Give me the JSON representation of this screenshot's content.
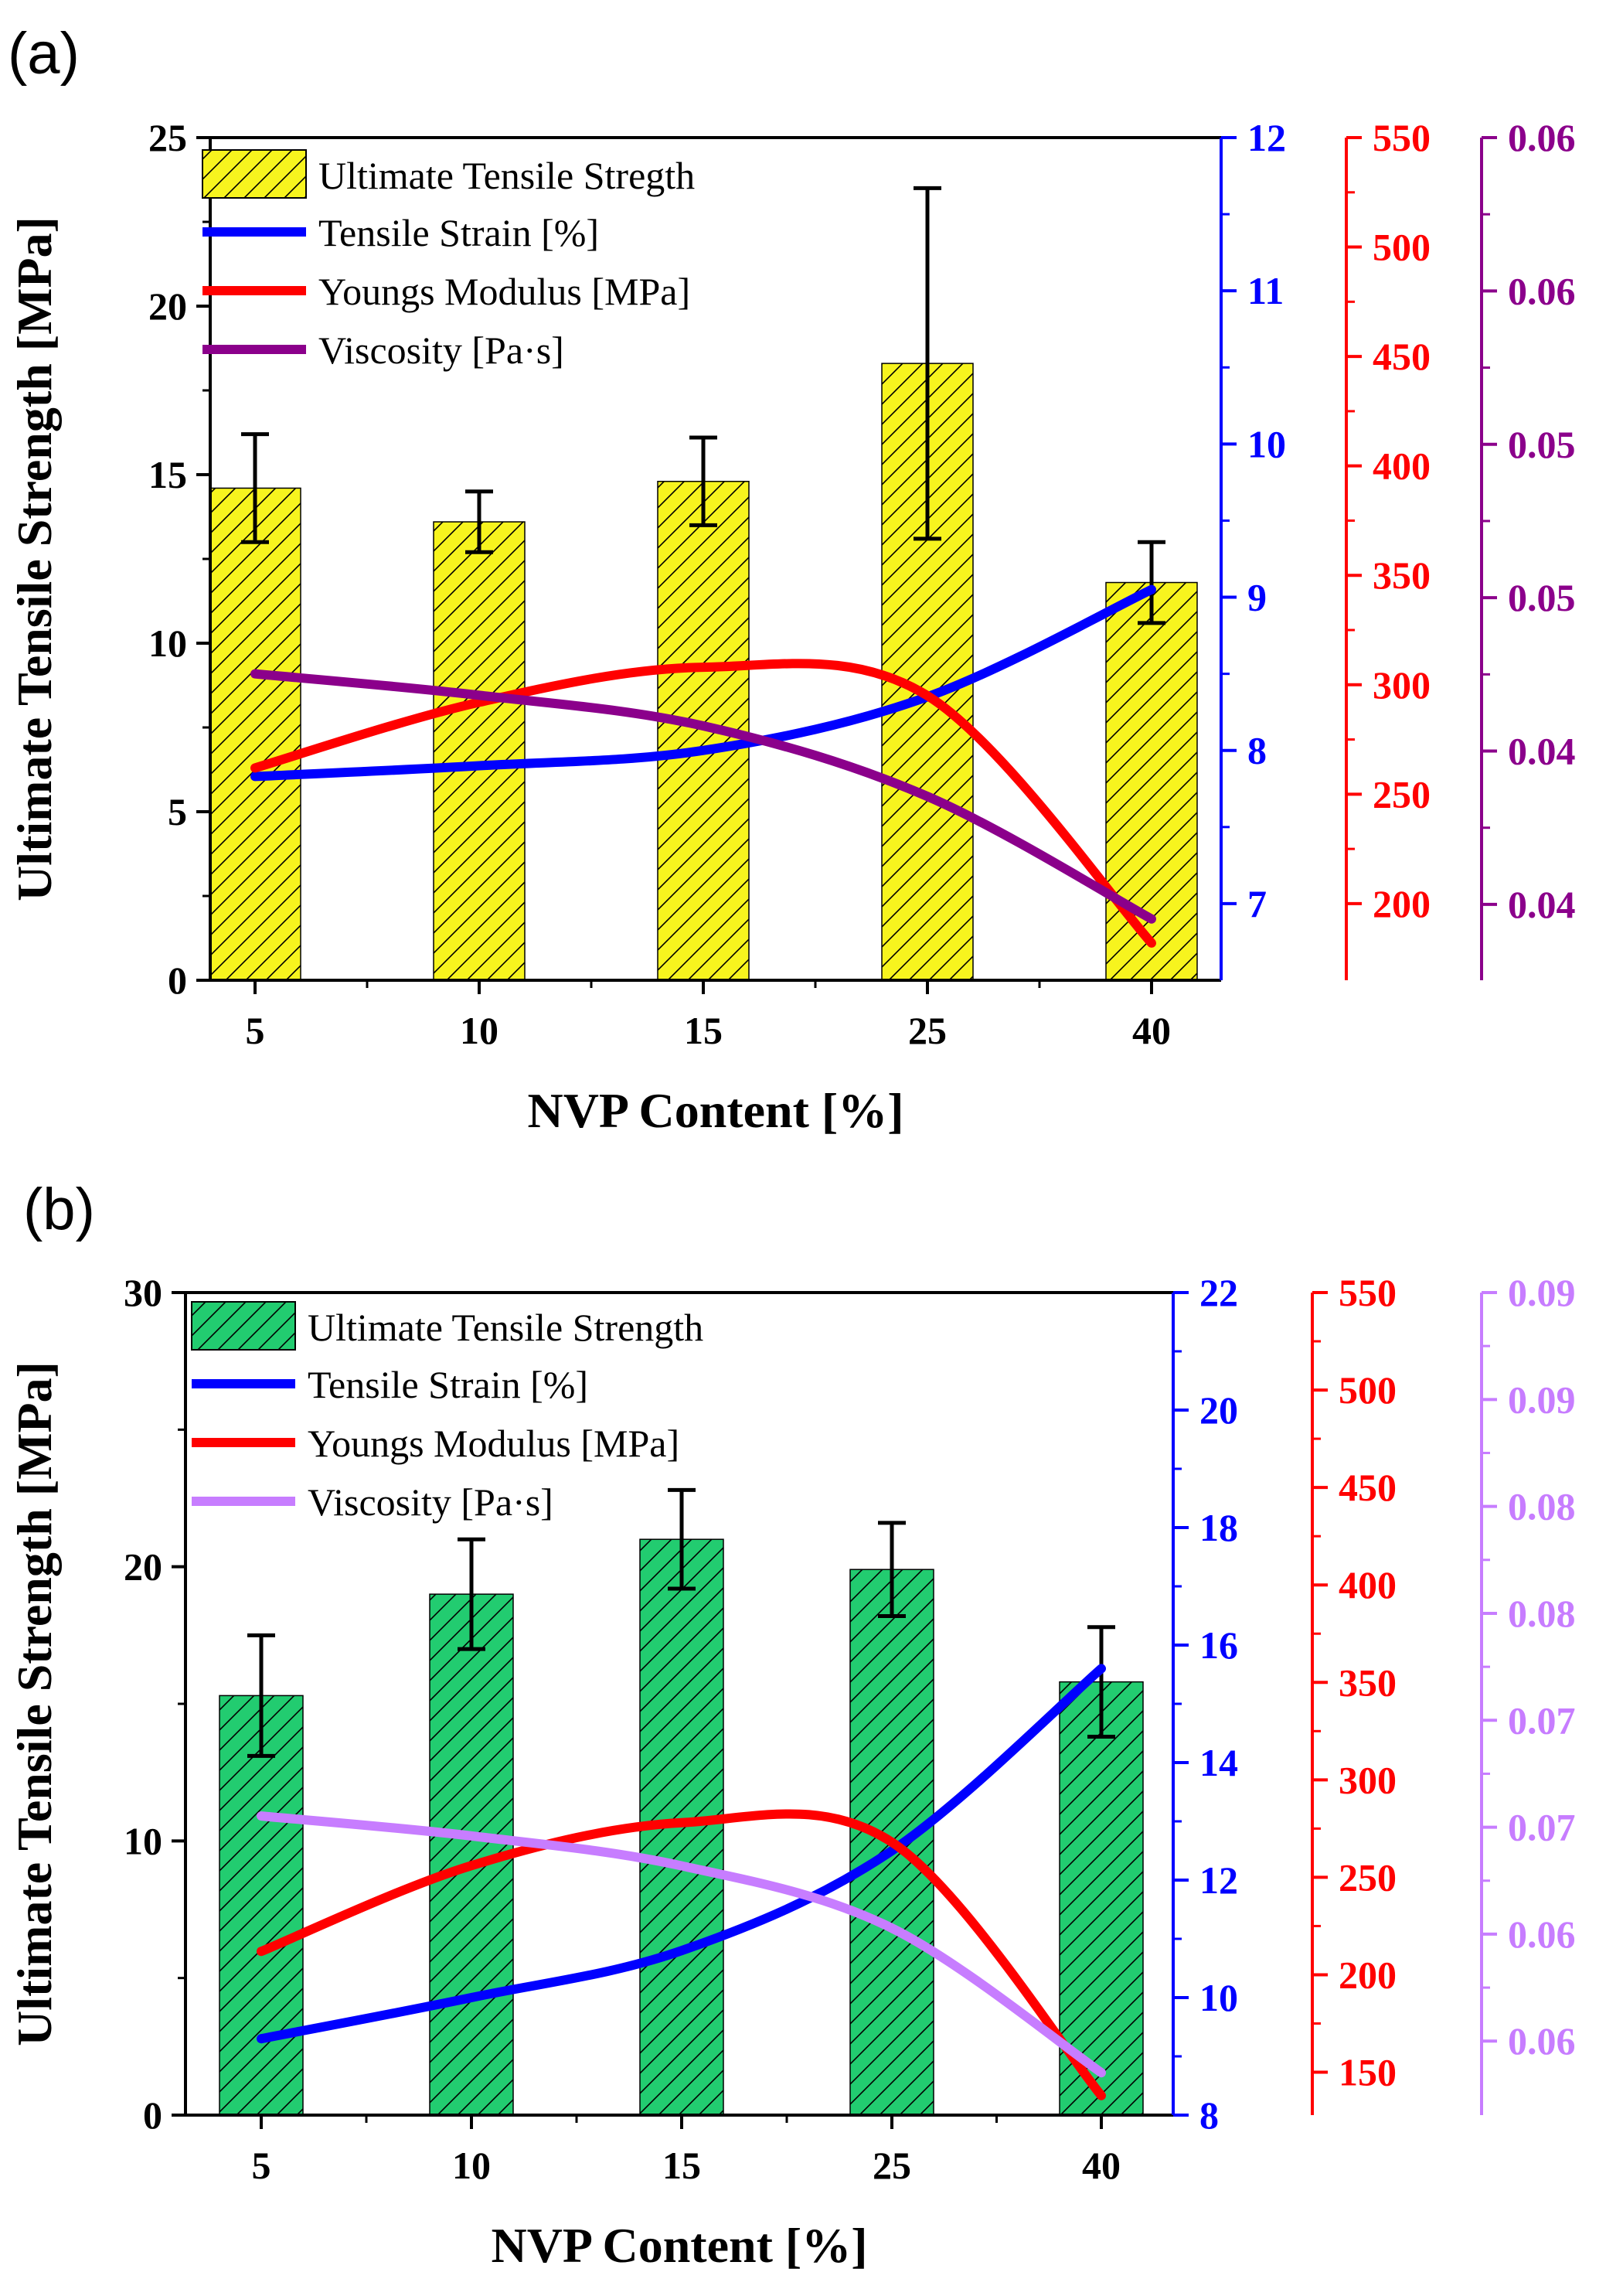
{
  "chart_data": [
    {
      "panel_label": "(a)",
      "type": "bar",
      "xlabel": "NVP Content [%]",
      "ylabel": "Ultimate Tensile Strength [MPa]",
      "categories": [
        "5",
        "10",
        "15",
        "25",
        "40"
      ],
      "bar_color": "#f7f41e",
      "ylim": [
        0,
        25
      ],
      "yticks": [
        "0",
        "5",
        "10",
        "15",
        "20",
        "25"
      ],
      "bars": {
        "name": "Ultimate Tensile Stregth",
        "values": [
          14.6,
          13.6,
          14.8,
          18.3,
          11.8
        ],
        "errors": [
          1.6,
          0.9,
          1.3,
          5.2,
          1.2
        ]
      },
      "lines": [
        {
          "name": "Tensile Strain [%]",
          "color": "#0000ff",
          "values": [
            7.83,
            7.9,
            8.0,
            8.35,
            9.05
          ],
          "ylim": [
            6.5,
            12
          ],
          "ticks": [
            "7",
            "8",
            "9",
            "10",
            "11",
            "12"
          ]
        },
        {
          "name": "Youngs Modulus [MPa]",
          "color": "#ff0000",
          "values": [
            262,
            292,
            308,
            295,
            182
          ],
          "ylim": [
            165,
            550
          ],
          "ticks": [
            "200",
            "250",
            "300",
            "350",
            "400",
            "450",
            "500",
            "550"
          ]
        },
        {
          "name": "Viscosity [Pa·s]",
          "color": "#8b008b",
          "values": [
            0.0435,
            0.0428,
            0.0418,
            0.0395,
            0.0355
          ],
          "ylim": [
            0.0335,
            0.061
          ],
          "ticks": [
            "0.04",
            "0.04",
            "0.05",
            "0.05",
            "0.06",
            "0.06"
          ]
        }
      ],
      "legend": "top-left"
    },
    {
      "panel_label": "(b)",
      "type": "bar",
      "xlabel": "NVP Content [%]",
      "ylabel": "Ultimate Tensile Strength [MPa]",
      "categories": [
        "5",
        "10",
        "15",
        "25",
        "40"
      ],
      "bar_color": "#22cc70",
      "ylim": [
        0,
        30
      ],
      "yticks": [
        "0",
        "10",
        "20",
        "30"
      ],
      "bars": {
        "name": "Ultimate Tensile Strength",
        "values": [
          15.3,
          19.0,
          21.0,
          19.9,
          15.8
        ],
        "errors": [
          2.2,
          2.0,
          1.8,
          1.7,
          2.0
        ]
      },
      "lines": [
        {
          "name": "Tensile Strain [%]",
          "color": "#0000ff",
          "values": [
            9.3,
            10.0,
            10.8,
            12.5,
            15.6
          ],
          "ylim": [
            8,
            22
          ],
          "ticks": [
            "8",
            "10",
            "12",
            "14",
            "16",
            "18",
            "20",
            "22"
          ]
        },
        {
          "name": "Youngs Modulus [MPa]",
          "color": "#ff0000",
          "values": [
            212,
            256,
            278,
            268,
            138
          ],
          "ylim": [
            128,
            550
          ],
          "ticks": [
            "150",
            "200",
            "250",
            "300",
            "350",
            "400",
            "450",
            "500",
            "550"
          ]
        },
        {
          "name": "Viscosity [Pa·s]",
          "color": "#c77dff",
          "values": [
            0.069,
            0.0682,
            0.067,
            0.0645,
            0.0587
          ],
          "ylim": [
            0.057,
            0.09
          ],
          "ticks": [
            "0.06",
            "0.06",
            "0.07",
            "0.07",
            "0.08",
            "0.08",
            "0.09",
            "0.09"
          ]
        }
      ],
      "legend": "top-left"
    }
  ]
}
